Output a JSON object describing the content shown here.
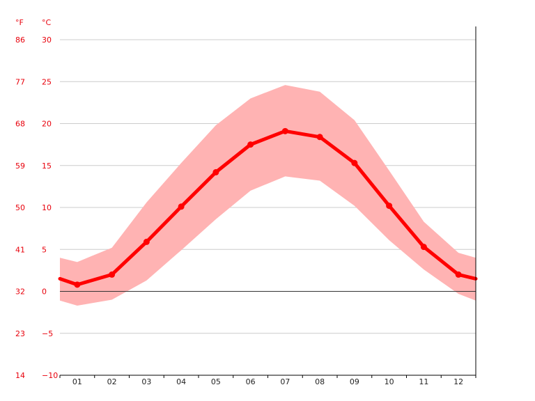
{
  "chart_data": {
    "type": "line",
    "title": "",
    "units": {
      "fahrenheit": "°F",
      "celsius": "°C"
    },
    "categories": [
      "01",
      "02",
      "03",
      "04",
      "05",
      "06",
      "07",
      "08",
      "09",
      "10",
      "11",
      "12"
    ],
    "series": [
      {
        "values": [
          0.8,
          2.0,
          5.9,
          10.1,
          14.2,
          17.5,
          19.1,
          18.4,
          15.3,
          10.2,
          5.3,
          2.0
        ]
      }
    ],
    "band": {
      "upper": [
        3.5,
        5.2,
        10.6,
        15.3,
        19.8,
        23.0,
        24.6,
        23.8,
        20.4,
        14.4,
        8.3,
        4.6
      ],
      "lower": [
        -1.7,
        -1.0,
        1.3,
        4.9,
        8.6,
        12.0,
        13.7,
        13.2,
        10.2,
        6.1,
        2.6,
        -0.3
      ]
    },
    "edges": {
      "start": {
        "mean": 1.5,
        "upper": 4.0,
        "lower": -1.1
      },
      "end": {
        "mean": 1.5,
        "upper": 4.0,
        "lower": -1.1
      }
    },
    "yticks_c": [
      "30",
      "25",
      "20",
      "15",
      "10",
      "5",
      "0",
      "−5",
      "−10"
    ],
    "yticks_c_values": [
      30,
      25,
      20,
      15,
      10,
      5,
      0,
      -5,
      -10
    ],
    "yticks_f": [
      "86",
      "77",
      "68",
      "59",
      "50",
      "41",
      "32",
      "23",
      "14"
    ],
    "ylim": [
      -10,
      30
    ],
    "grid": true,
    "colors": {
      "line": "#ff0000",
      "band": "#ffb3b3",
      "axis_text": "#e8000b",
      "grid": "#cccccc",
      "zero_line": "#333333"
    }
  }
}
